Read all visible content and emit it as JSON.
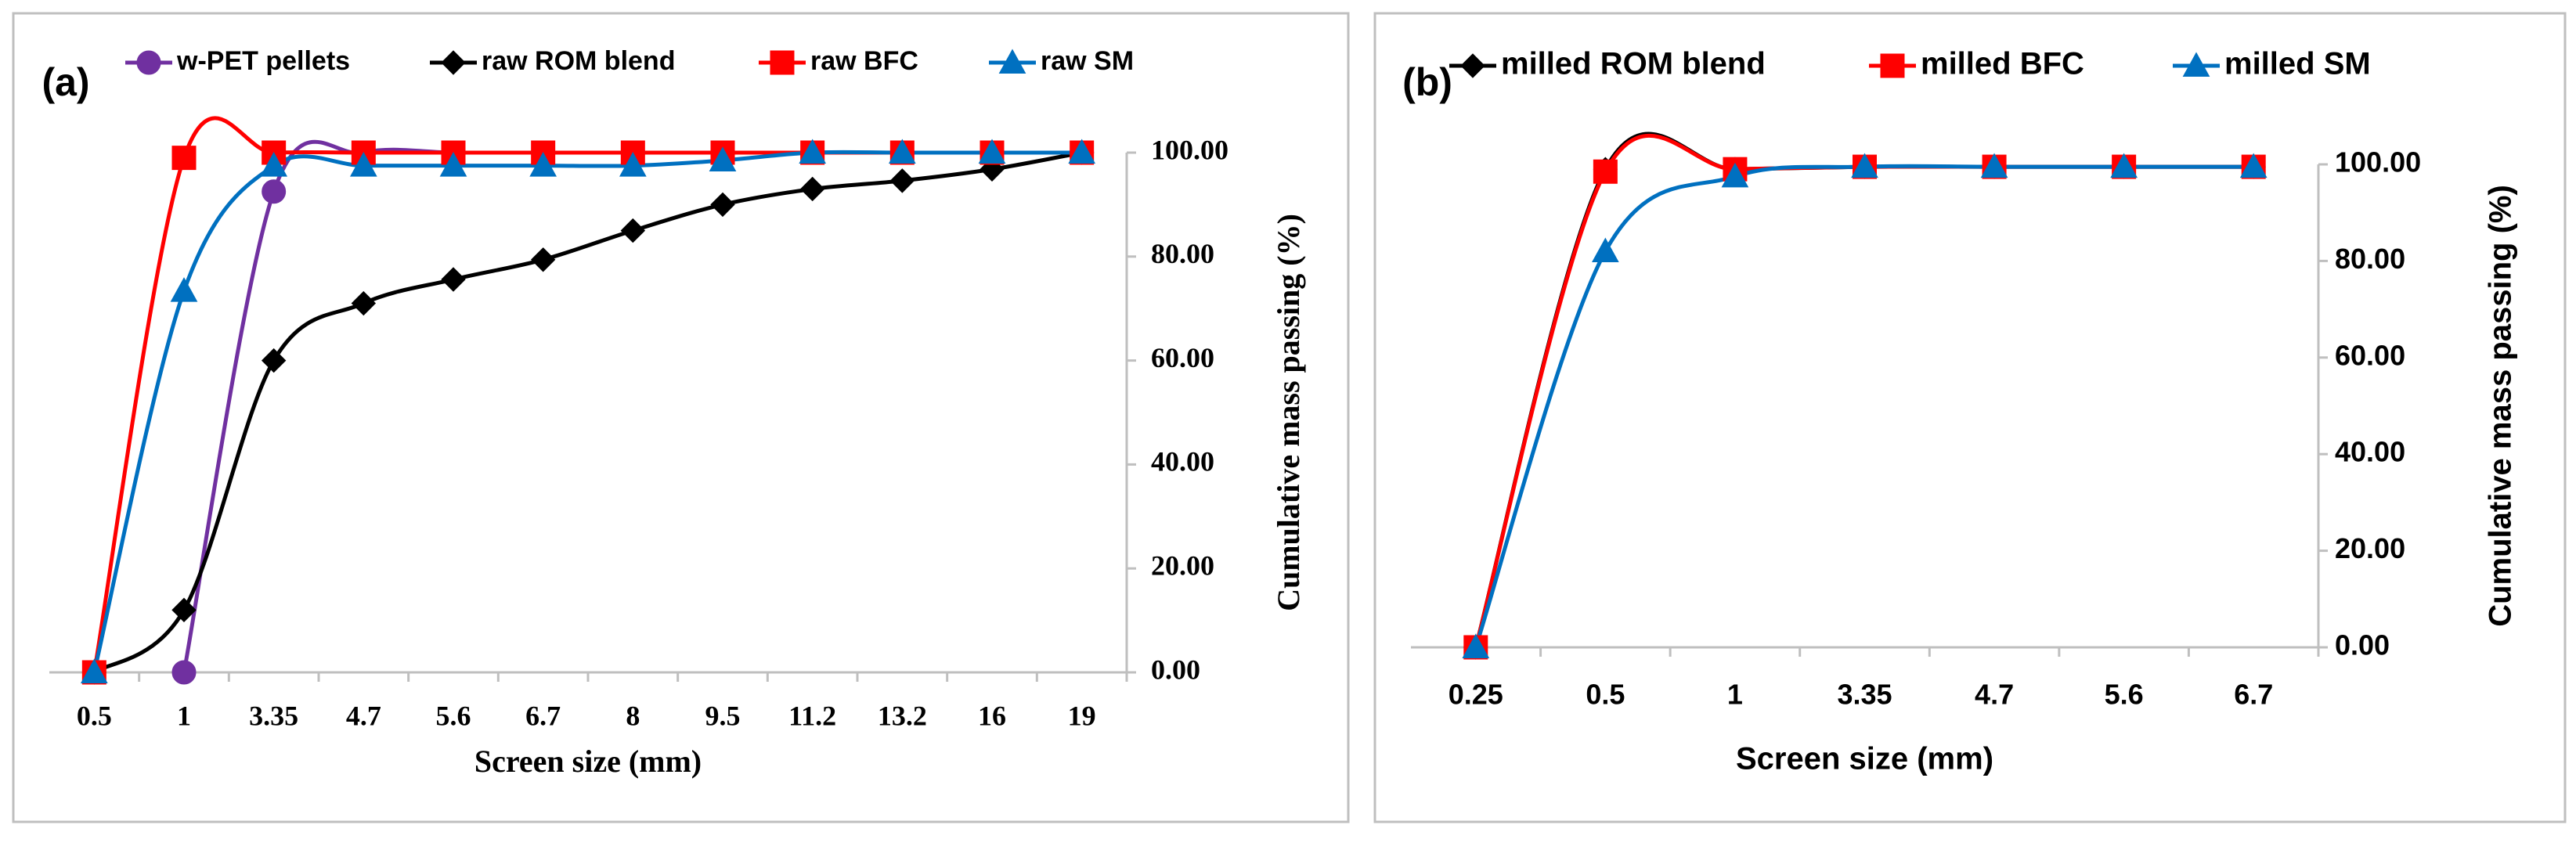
{
  "chart_data": [
    {
      "type": "line",
      "label": "(a)",
      "x_label": "Screen size (mm)",
      "y_label": "Cumulative mass passing (%)",
      "categories": [
        "0.5",
        "1",
        "3.35",
        "4.7",
        "5.6",
        "6.7",
        "8",
        "9.5",
        "11.2",
        "13.2",
        "16",
        "19"
      ],
      "ylim": [
        0,
        100
      ],
      "yticks": [
        {
          "value": 0,
          "label": "0.00"
        },
        {
          "value": 20,
          "label": "20.00"
        },
        {
          "value": 40,
          "label": "40.00"
        },
        {
          "value": 60,
          "label": "60.00"
        },
        {
          "value": 80,
          "label": "80.00"
        },
        {
          "value": 100,
          "label": "100.00"
        }
      ],
      "y_axis_side": "right",
      "series": [
        {
          "name": "w-PET pellets",
          "color": "#7030a0",
          "marker": "circle",
          "values": [
            null,
            0,
            92.5,
            100,
            100,
            100,
            100,
            100,
            100,
            100,
            100,
            100
          ]
        },
        {
          "name": "raw ROM blend",
          "color": "#000000",
          "marker": "diamond",
          "values": [
            0,
            12,
            60,
            71,
            75.6,
            79.4,
            85,
            90,
            93,
            94.6,
            96.8,
            100
          ]
        },
        {
          "name": "raw BFC",
          "color": "#ff0000",
          "marker": "square",
          "values": [
            0,
            99,
            100,
            100,
            100,
            100,
            100,
            100,
            100,
            100,
            100,
            100
          ]
        },
        {
          "name": "raw SM",
          "color": "#0070c0",
          "marker": "triangle",
          "values": [
            0,
            73.4,
            97.5,
            97.5,
            97.5,
            97.5,
            97.5,
            98.5,
            100,
            100,
            100,
            100
          ]
        }
      ]
    },
    {
      "type": "line",
      "label": "(b)",
      "x_label": "Screen size (mm)",
      "y_label": "Cumulative mass passing (%)",
      "categories": [
        "0.25",
        "0.5",
        "1",
        "3.35",
        "4.7",
        "5.6",
        "6.7"
      ],
      "ylim": [
        0,
        100
      ],
      "yticks": [
        {
          "value": 0,
          "label": "0.00"
        },
        {
          "value": 20,
          "label": "20.00"
        },
        {
          "value": 40,
          "label": "40.00"
        },
        {
          "value": 60,
          "label": "60.00"
        },
        {
          "value": 80,
          "label": "80.00"
        },
        {
          "value": 100,
          "label": "100.00"
        }
      ],
      "y_axis_side": "right",
      "series": [
        {
          "name": "milled ROM blend",
          "color": "#000000",
          "marker": "diamond",
          "values": [
            0,
            99,
            99,
            99.5,
            99.5,
            99.5,
            99.5
          ]
        },
        {
          "name": "milled BFC",
          "color": "#ff0000",
          "marker": "square",
          "values": [
            0,
            98.5,
            99,
            99.5,
            99.5,
            99.5,
            99.5
          ]
        },
        {
          "name": "milled SM",
          "color": "#0070c0",
          "marker": "triangle",
          "values": [
            0,
            82,
            97.5,
            99.5,
            99.5,
            99.5,
            99.5
          ]
        }
      ]
    }
  ]
}
